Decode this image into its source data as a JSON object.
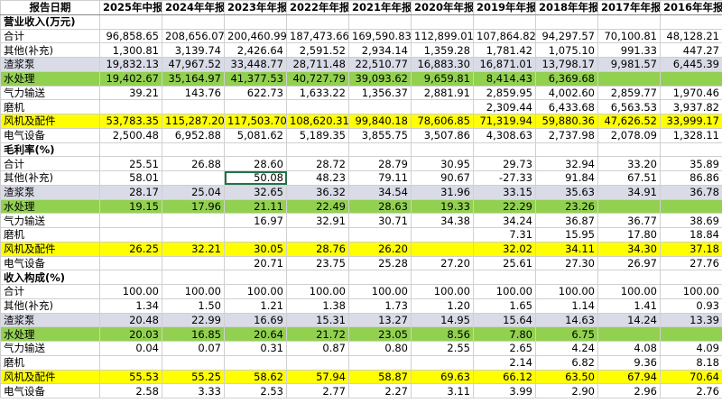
{
  "header": [
    "报告日期",
    "2025年中报",
    "2024年年报",
    "2023年年报",
    "2022年年报",
    "2021年年报",
    "2020年年报",
    "2019年年报",
    "2018年年报",
    "2017年年报",
    "2016年年报"
  ],
  "sections": [
    {
      "title": "营业收入(万元)",
      "rows": [
        {
          "label": "合计",
          "values": [
            "96,858.65",
            "208,656.07",
            "200,460.99",
            "187,473.66",
            "169,590.83",
            "112,899.01",
            "107,864.82",
            "94,297.57",
            "70,100.81",
            "48,128.21"
          ]
        },
        {
          "label": "其他(补充)",
          "values": [
            "1,300.81",
            "3,139.74",
            "2,426.64",
            "2,591.52",
            "2,934.14",
            "1,359.28",
            "1,781.42",
            "1,075.10",
            "991.33",
            "447.27"
          ]
        },
        {
          "label": "渣浆泵",
          "highlight": "#d9dbe6",
          "values": [
            "19,832.13",
            "47,967.52",
            "33,448.77",
            "28,711.48",
            "22,510.77",
            "16,883.30",
            "16,871.01",
            "13,798.17",
            "9,981.57",
            "6,445.39"
          ]
        },
        {
          "label": "水处理",
          "highlight": "#92d050",
          "values": [
            "19,402.67",
            "35,164.97",
            "41,377.53",
            "40,727.79",
            "39,093.62",
            "9,659.81",
            "8,414.43",
            "6,369.68",
            null,
            null
          ]
        },
        {
          "label": "气力输送",
          "values": [
            "39.21",
            "143.76",
            "622.73",
            "1,633.22",
            "1,356.37",
            "2,881.91",
            "2,859.95",
            "4,002.60",
            "2,859.77",
            "1,970.46"
          ]
        },
        {
          "label": "磨机",
          "values": [
            null,
            null,
            null,
            null,
            null,
            null,
            "2,309.44",
            "6,433.68",
            "6,563.53",
            "3,937.82"
          ]
        },
        {
          "label": "风机及配件",
          "highlight": "#ffff00",
          "values": [
            "53,783.35",
            "115,287.20",
            "117,503.70",
            "108,620.31",
            "99,840.18",
            "78,606.85",
            "71,319.94",
            "59,880.36",
            "47,626.52",
            "33,999.17"
          ]
        },
        {
          "label": "电气设备",
          "values": [
            "2,500.48",
            "6,952.88",
            "5,081.62",
            "5,189.35",
            "3,855.75",
            "3,507.86",
            "4,308.63",
            "2,737.98",
            "2,078.09",
            "1,328.11"
          ]
        }
      ]
    },
    {
      "title": "毛利率(%)",
      "rows": [
        {
          "label": "合计",
          "values": [
            "25.51",
            "26.88",
            "28.60",
            "28.72",
            "28.79",
            "30.95",
            "29.73",
            "32.94",
            "33.20",
            "35.89"
          ]
        },
        {
          "label": "其他(补充)",
          "values": [
            "58.01",
            null,
            "50.08",
            "48.23",
            "79.11",
            "90.67",
            "-27.33",
            "91.84",
            "67.51",
            "86.86"
          ]
        },
        {
          "label": "渣浆泵",
          "highlight": "#d9dbe6",
          "values": [
            "28.17",
            "25.04",
            "32.65",
            "36.32",
            "34.54",
            "31.96",
            "33.15",
            "35.63",
            "34.91",
            "36.78"
          ]
        },
        {
          "label": "水处理",
          "highlight": "#92d050",
          "values": [
            "19.15",
            "17.96",
            "21.11",
            "22.49",
            "28.63",
            "19.33",
            "22.29",
            "23.26",
            null,
            null
          ]
        },
        {
          "label": "气力输送",
          "values": [
            null,
            null,
            "16.97",
            "32.91",
            "30.71",
            "34.38",
            "34.24",
            "36.87",
            "36.77",
            "38.69"
          ]
        },
        {
          "label": "磨机",
          "values": [
            null,
            null,
            null,
            null,
            null,
            null,
            "7.31",
            "15.95",
            "17.80",
            "18.84"
          ]
        },
        {
          "label": "风机及配件",
          "highlight": "#ffff00",
          "values": [
            "26.25",
            "32.21",
            "30.05",
            "28.76",
            "26.20",
            null,
            "32.02",
            "34.11",
            "34.30",
            "37.18"
          ]
        },
        {
          "label": "电气设备",
          "values": [
            null,
            null,
            "20.71",
            "23.75",
            "25.28",
            "27.20",
            "25.61",
            "27.30",
            "26.97",
            "27.76"
          ]
        }
      ]
    },
    {
      "title": "收入构成(%)",
      "rows": [
        {
          "label": "合计",
          "values": [
            "100.00",
            "100.00",
            "100.00",
            "100.00",
            "100.00",
            "100.00",
            "100.00",
            "100.00",
            "100.00",
            "100.00"
          ]
        },
        {
          "label": "其他(补充)",
          "values": [
            "1.34",
            "1.50",
            "1.21",
            "1.38",
            "1.73",
            "1.20",
            "1.65",
            "1.14",
            "1.41",
            "0.93"
          ]
        },
        {
          "label": "渣浆泵",
          "highlight": "#d9dbe6",
          "values": [
            "20.48",
            "22.99",
            "16.69",
            "15.31",
            "13.27",
            "14.95",
            "15.64",
            "14.63",
            "14.24",
            "13.39"
          ]
        },
        {
          "label": "水处理",
          "highlight": "#92d050",
          "values": [
            "20.03",
            "16.85",
            "20.64",
            "21.72",
            "23.05",
            "8.56",
            "7.80",
            "6.75",
            null,
            null
          ]
        },
        {
          "label": "气力输送",
          "values": [
            "0.04",
            "0.07",
            "0.31",
            "0.87",
            "0.80",
            "2.55",
            "2.65",
            "4.24",
            "4.08",
            "4.09"
          ]
        },
        {
          "label": "磨机",
          "values": [
            null,
            null,
            null,
            null,
            null,
            null,
            "2.14",
            "6.82",
            "9.36",
            "8.18"
          ]
        },
        {
          "label": "风机及配件",
          "highlight": "#ffff00",
          "values": [
            "55.53",
            "55.25",
            "58.62",
            "57.94",
            "58.87",
            "69.63",
            "66.12",
            "63.50",
            "67.94",
            "70.64"
          ]
        },
        {
          "label": "电气设备",
          "values": [
            "2.58",
            "3.33",
            "2.53",
            "2.77",
            "2.27",
            "3.11",
            "3.99",
            "2.90",
            "2.96",
            "2.76"
          ]
        }
      ]
    }
  ]
}
